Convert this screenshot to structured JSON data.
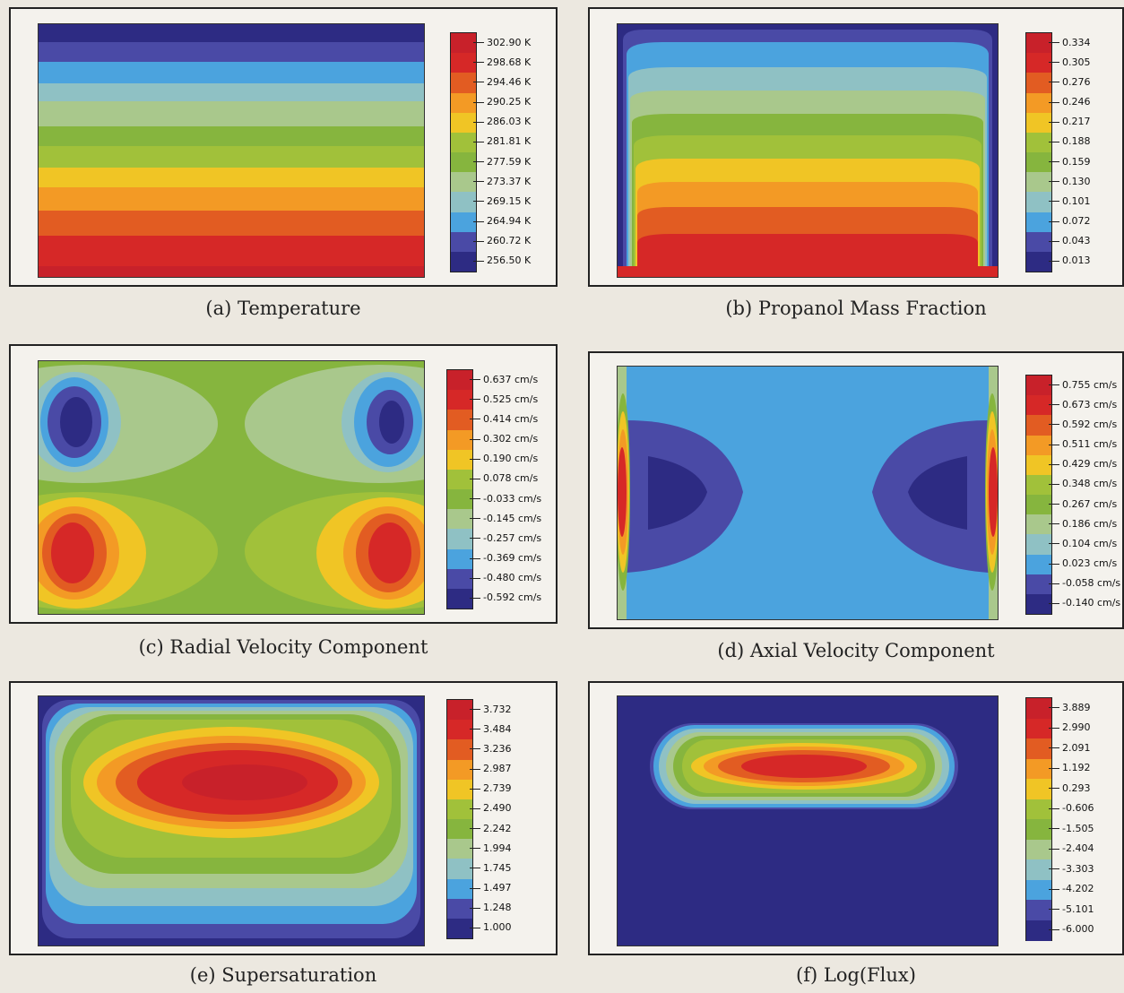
{
  "colors": [
    "#2d2b83",
    "#4a4aa6",
    "#4ba3de",
    "#8fc1c4",
    "#a9c88c",
    "#86b53e",
    "#a1c13a",
    "#f0c525",
    "#f39a25",
    "#e25c22",
    "#d62827",
    "#c8212a"
  ],
  "figures": [
    {
      "id": "a",
      "caption": "(a) Temperature",
      "ticks": [
        "302.90 K",
        "298.68 K",
        "294.46 K",
        "290.25 K",
        "286.03 K",
        "281.81 K",
        "277.59 K",
        "273.37 K",
        "269.15 K",
        "264.94 K",
        "260.72 K",
        "256.50 K"
      ]
    },
    {
      "id": "b",
      "caption": "(b) Propanol Mass Fraction",
      "ticks": [
        "0.334",
        "0.305",
        "0.276",
        "0.246",
        "0.217",
        "0.188",
        "0.159",
        "0.130",
        "0.101",
        "0.072",
        "0.043",
        "0.013"
      ]
    },
    {
      "id": "c",
      "caption": "(c) Radial Velocity Component",
      "ticks": [
        "0.637 cm/s",
        "0.525 cm/s",
        "0.414 cm/s",
        "0.302 cm/s",
        "0.190 cm/s",
        "0.078 cm/s",
        "-0.033 cm/s",
        "-0.145 cm/s",
        "-0.257 cm/s",
        "-0.369 cm/s",
        "-0.480 cm/s",
        "-0.592 cm/s"
      ]
    },
    {
      "id": "d",
      "caption": "(d) Axial Velocity Component",
      "ticks": [
        "0.755 cm/s",
        "0.673 cm/s",
        "0.592 cm/s",
        "0.511 cm/s",
        "0.429 cm/s",
        "0.348 cm/s",
        "0.267 cm/s",
        "0.186 cm/s",
        "0.104 cm/s",
        "0.023 cm/s",
        "-0.058 cm/s",
        "-0.140 cm/s"
      ]
    },
    {
      "id": "e",
      "caption": "(e) Supersaturation",
      "ticks": [
        "3.732",
        "3.484",
        "3.236",
        "2.987",
        "2.739",
        "2.490",
        "2.242",
        "1.994",
        "1.745",
        "1.497",
        "1.248",
        "1.000"
      ]
    },
    {
      "id": "f",
      "caption": "(f) Log(Flux)",
      "ticks": [
        "3.889",
        "2.990",
        "2.091",
        "1.192",
        "0.293",
        "-0.606",
        "-1.505",
        "-2.404",
        "-3.303",
        "-4.202",
        "-5.101",
        "-6.000"
      ]
    }
  ]
}
